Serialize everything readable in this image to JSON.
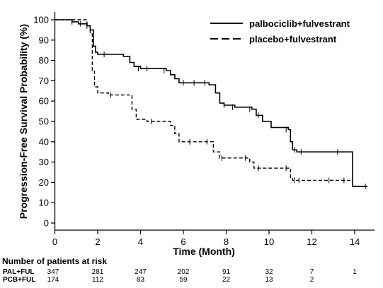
{
  "chart_data": {
    "type": "line",
    "step": true,
    "xlabel": "Time (Month)",
    "ylabel": "Progression-Free Survival Probability (%)",
    "xlim": [
      0,
      15
    ],
    "ylim": [
      0,
      100
    ],
    "xticks": [
      0,
      2,
      4,
      6,
      8,
      10,
      12,
      14
    ],
    "yticks": [
      0,
      10,
      20,
      30,
      40,
      50,
      60,
      70,
      80,
      90,
      100
    ],
    "legend": {
      "position": "top-right",
      "entries": [
        "palbociclib+fulvestrant",
        "placebo+fulvestrant"
      ]
    },
    "series": [
      {
        "name": "palbociclib+fulvestrant",
        "line_style": "solid",
        "points": [
          [
            0,
            100
          ],
          [
            0.5,
            100
          ],
          [
            0.8,
            99
          ],
          [
            1.1,
            98
          ],
          [
            1.5,
            97
          ],
          [
            1.65,
            95
          ],
          [
            1.8,
            87
          ],
          [
            1.9,
            84
          ],
          [
            2.0,
            83
          ],
          [
            3.2,
            82
          ],
          [
            3.5,
            79
          ],
          [
            3.7,
            77
          ],
          [
            4.0,
            76
          ],
          [
            5.2,
            75
          ],
          [
            5.4,
            73
          ],
          [
            5.6,
            71
          ],
          [
            5.8,
            69
          ],
          [
            7.2,
            68
          ],
          [
            7.5,
            64
          ],
          [
            7.7,
            59
          ],
          [
            7.9,
            58
          ],
          [
            8.4,
            57
          ],
          [
            9.2,
            56
          ],
          [
            9.4,
            53
          ],
          [
            9.7,
            50
          ],
          [
            10.1,
            47
          ],
          [
            10.9,
            46
          ],
          [
            11.0,
            40
          ],
          [
            11.1,
            36
          ],
          [
            11.3,
            35
          ],
          [
            13.9,
            35
          ],
          [
            13.9,
            18
          ],
          [
            14.6,
            18
          ]
        ],
        "censor_marks": [
          [
            0.8,
            99
          ],
          [
            1.5,
            97
          ],
          [
            2.3,
            83
          ],
          [
            3.9,
            76
          ],
          [
            4.3,
            76
          ],
          [
            5.1,
            75
          ],
          [
            6.0,
            69
          ],
          [
            6.5,
            69
          ],
          [
            7.0,
            69
          ],
          [
            7.9,
            58
          ],
          [
            8.3,
            57
          ],
          [
            9.1,
            56
          ],
          [
            9.5,
            53
          ],
          [
            10.8,
            46
          ],
          [
            11.2,
            36
          ],
          [
            11.5,
            35
          ],
          [
            13.2,
            35
          ],
          [
            14.5,
            18
          ]
        ]
      },
      {
        "name": "placebo+fulvestrant",
        "line_style": "dashed",
        "points": [
          [
            0,
            100
          ],
          [
            1.5,
            97
          ],
          [
            1.65,
            93
          ],
          [
            1.75,
            75
          ],
          [
            1.85,
            67
          ],
          [
            2.0,
            64
          ],
          [
            2.5,
            63
          ],
          [
            3.4,
            63
          ],
          [
            3.6,
            56
          ],
          [
            3.8,
            51
          ],
          [
            4.3,
            50
          ],
          [
            5.4,
            48
          ],
          [
            5.6,
            44
          ],
          [
            5.8,
            40
          ],
          [
            7.2,
            40
          ],
          [
            7.4,
            35
          ],
          [
            7.7,
            32
          ],
          [
            8.9,
            32
          ],
          [
            9.1,
            30
          ],
          [
            9.3,
            27
          ],
          [
            10.9,
            27
          ],
          [
            11.0,
            22
          ],
          [
            11.1,
            21
          ],
          [
            13.8,
            21
          ]
        ],
        "censor_marks": [
          [
            1.2,
            98
          ],
          [
            2.6,
            63
          ],
          [
            4.5,
            50
          ],
          [
            6.3,
            40
          ],
          [
            7.1,
            40
          ],
          [
            7.8,
            32
          ],
          [
            8.9,
            32
          ],
          [
            9.5,
            27
          ],
          [
            10.8,
            27
          ],
          [
            11.2,
            21
          ],
          [
            11.4,
            21
          ],
          [
            12.8,
            21
          ],
          [
            13.5,
            21
          ]
        ]
      }
    ]
  },
  "risk_table": {
    "title": "Number of patients at risk",
    "times": [
      0,
      2,
      4,
      6,
      8,
      10,
      12,
      14
    ],
    "rows": [
      {
        "label": "PAL+FUL",
        "counts": [
          "347",
          "281",
          "247",
          "202",
          "91",
          "32",
          "7",
          "1"
        ]
      },
      {
        "label": "PCB+FUL",
        "counts": [
          "174",
          "112",
          "83",
          "59",
          "22",
          "13",
          "2",
          ""
        ]
      }
    ]
  }
}
